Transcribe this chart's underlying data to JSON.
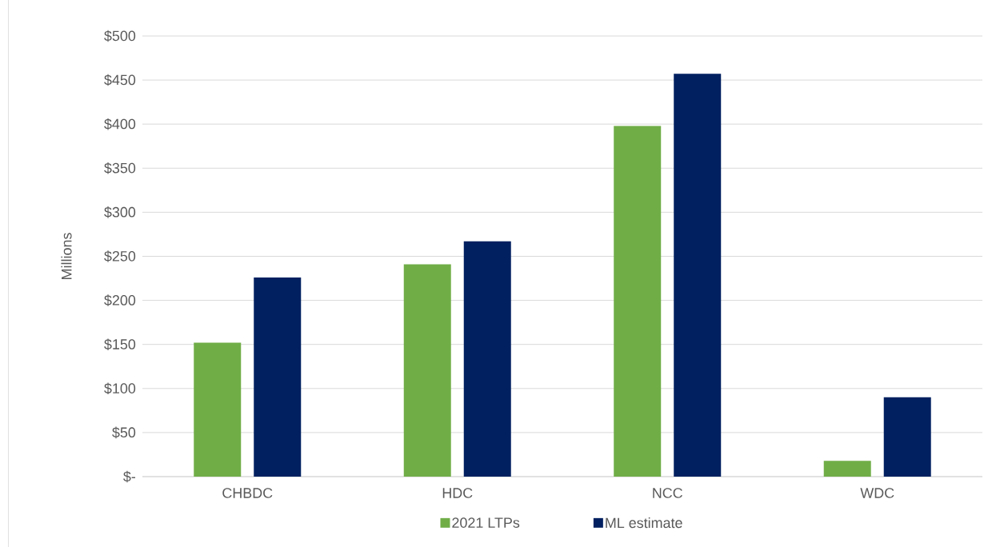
{
  "chart_data": {
    "type": "bar",
    "ylabel": "Millions",
    "categories": [
      "CHBDC",
      "HDC",
      "NCC",
      "WDC"
    ],
    "series": [
      {
        "name": "2021 LTPs",
        "color": "#70ad47",
        "values": [
          152,
          241,
          398,
          18
        ]
      },
      {
        "name": "ML estimate",
        "color": "#002060",
        "values": [
          226,
          267,
          457,
          90
        ]
      }
    ],
    "ylim": [
      0,
      500
    ],
    "yticks": [
      {
        "value": 0,
        "label": "$-"
      },
      {
        "value": 50,
        "label": "$50"
      },
      {
        "value": 100,
        "label": "$100"
      },
      {
        "value": 150,
        "label": "$150"
      },
      {
        "value": 200,
        "label": "$200"
      },
      {
        "value": 250,
        "label": "$250"
      },
      {
        "value": 300,
        "label": "$300"
      },
      {
        "value": 350,
        "label": "$350"
      },
      {
        "value": 400,
        "label": "$400"
      },
      {
        "value": 450,
        "label": "$450"
      },
      {
        "value": 500,
        "label": "$500"
      }
    ],
    "grid": "y",
    "legend": "bottom"
  }
}
